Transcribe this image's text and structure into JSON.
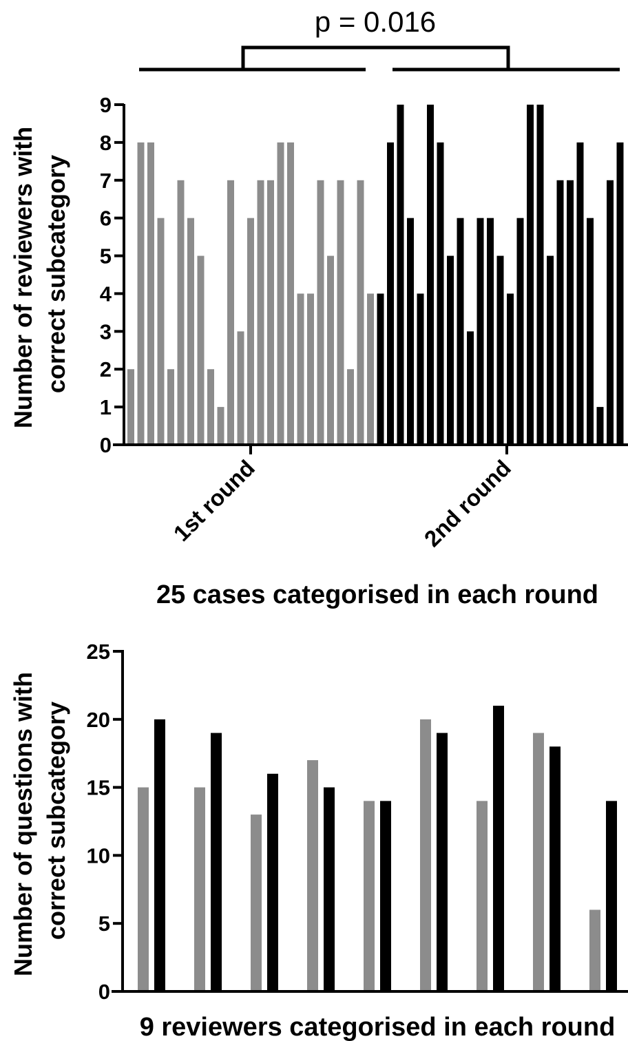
{
  "chart_data": [
    {
      "type": "bar",
      "annotation": "p = 0.016",
      "ylabel_lines": [
        "Number of reviewers with",
        "correct subcategory"
      ],
      "xlabel": "25 cases categorised in each round",
      "ylim": [
        0,
        9
      ],
      "yticks": [
        "0",
        "1",
        "2",
        "3",
        "4",
        "5",
        "6",
        "7",
        "8",
        "9"
      ],
      "groups": [
        "1st round",
        "2nd round"
      ],
      "series": [
        {
          "values": [
            2,
            8,
            8,
            6,
            2,
            7,
            6,
            5,
            2,
            1,
            7,
            3,
            6,
            7,
            7,
            8,
            8,
            4,
            4,
            7,
            5,
            7,
            2,
            7,
            4
          ],
          "color": "#8c8c8c"
        },
        {
          "values": [
            4,
            8,
            9,
            6,
            4,
            9,
            8,
            5,
            6,
            3,
            6,
            6,
            5,
            4,
            6,
            9,
            9,
            5,
            7,
            7,
            8,
            6,
            1,
            7,
            8
          ],
          "color": "#000000"
        }
      ]
    },
    {
      "type": "bar",
      "ylabel_lines": [
        "Number of questions with",
        "correct subcategory"
      ],
      "xlabel": "9 reviewers categorised in each round",
      "ylim": [
        0,
        25
      ],
      "yticks": [
        "0",
        "5",
        "10",
        "15",
        "20",
        "25"
      ],
      "series": [
        {
          "values": [
            15,
            15,
            13,
            17,
            14,
            20,
            14,
            19,
            6
          ],
          "color": "#8c8c8c"
        },
        {
          "values": [
            20,
            19,
            16,
            15,
            14,
            19,
            21,
            18,
            14
          ],
          "color": "#000000"
        }
      ]
    }
  ]
}
